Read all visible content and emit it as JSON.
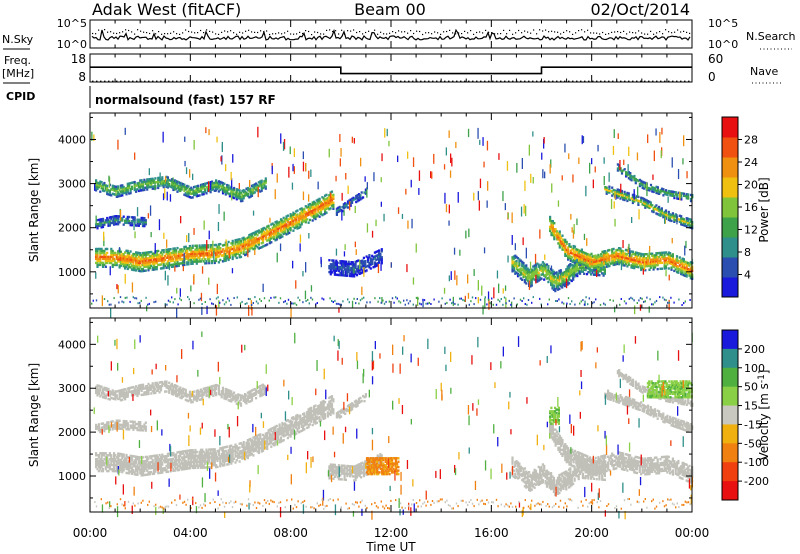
{
  "header": {
    "station": "Adak West (fitACF)",
    "beam": "Beam 00",
    "date": "02/Oct/2014"
  },
  "panels": {
    "noise": {
      "left_label": "N.Sky",
      "left_ticks": [
        "10^5",
        "10^0"
      ],
      "right_ticks": [
        "10^5",
        "10^0"
      ],
      "right_label": "N.Search"
    },
    "freq": {
      "left_label_1": "Freq.",
      "left_label_2": "[MHz]",
      "left_ticks": [
        "18",
        "8"
      ],
      "right_ticks": [
        "60",
        "0"
      ],
      "right_label": "Nave"
    },
    "cpid": {
      "label": "CPID",
      "text": "normalsound (fast) 157 RF"
    }
  },
  "chart_data": [
    {
      "type": "heatmap",
      "name": "power",
      "ylabel": "Slant Range [km]",
      "yticks": [
        1000,
        2000,
        3000,
        4000
      ],
      "ylim": [
        180,
        4600
      ],
      "xlim": [
        0,
        24
      ],
      "colorbar": {
        "label": "Power [dB]",
        "ticks": [
          4,
          8,
          12,
          16,
          20,
          24,
          28
        ],
        "range": [
          0,
          32
        ],
        "colors": [
          "#1a1adc",
          "#2a4fb0",
          "#2f8f8a",
          "#3ea24a",
          "#7fc43a",
          "#f0c010",
          "#f09010",
          "#f05010",
          "#e81010"
        ]
      },
      "echo_bands": [
        {
          "t0": 0.2,
          "t1": 9.7,
          "range_km": [
            [
              0.2,
              1350
            ],
            [
              1,
              1350
            ],
            [
              2,
              1250
            ],
            [
              3,
              1330
            ],
            [
              4,
              1420
            ],
            [
              5,
              1440
            ],
            [
              6,
              1580
            ],
            [
              7,
              1850
            ],
            [
              8,
              2150
            ],
            [
              9,
              2450
            ],
            [
              9.7,
              2680
            ]
          ],
          "thickness_km": 420,
          "power_db": 26
        },
        {
          "t0": 0.2,
          "t1": 7.0,
          "range_km": [
            [
              0.2,
              3000
            ],
            [
              1,
              2850
            ],
            [
              2,
              3000
            ],
            [
              3,
              3080
            ],
            [
              4,
              2830
            ],
            [
              5,
              3000
            ],
            [
              6,
              2750
            ],
            [
              7,
              3050
            ]
          ],
          "thickness_km": 250,
          "power_db": 16
        },
        {
          "t0": 0.2,
          "t1": 2.2,
          "range_km": [
            [
              0.2,
              2100
            ],
            [
              1,
              2200
            ],
            [
              2.2,
              2150
            ]
          ],
          "thickness_km": 180,
          "power_db": 10
        },
        {
          "t0": 9.8,
          "t1": 11.0,
          "range_km": [
            [
              9.8,
              2400
            ],
            [
              11,
              2850
            ]
          ],
          "thickness_km": 160,
          "power_db": 8
        },
        {
          "t0": 9.5,
          "t1": 11.6,
          "range_km": [
            [
              9.5,
              1150
            ],
            [
              10.5,
              1100
            ],
            [
              11.6,
              1400
            ]
          ],
          "thickness_km": 350,
          "power_db": 6
        },
        {
          "t0": 16.8,
          "t1": 20.5,
          "range_km": [
            [
              16.8,
              1250
            ],
            [
              17.5,
              900
            ],
            [
              18,
              1100
            ],
            [
              18.5,
              800
            ],
            [
              19,
              950
            ],
            [
              19.5,
              1200
            ],
            [
              20.5,
              1150
            ]
          ],
          "thickness_km": 420,
          "power_db": 18
        },
        {
          "t0": 18.3,
          "t1": 24.0,
          "range_km": [
            [
              18.3,
              2100
            ],
            [
              19,
              1500
            ],
            [
              20,
              1250
            ],
            [
              21,
              1400
            ],
            [
              22,
              1250
            ],
            [
              23,
              1300
            ],
            [
              24,
              1050
            ]
          ],
          "thickness_km": 380,
          "power_db": 26
        },
        {
          "t0": 20.5,
          "t1": 24.0,
          "range_km": [
            [
              20.5,
              2900
            ],
            [
              22,
              2600
            ],
            [
              23,
              2300
            ],
            [
              24,
              2100
            ]
          ],
          "thickness_km": 180,
          "power_db": 18
        },
        {
          "t0": 21.0,
          "t1": 24.0,
          "range_km": [
            [
              21,
              3400
            ],
            [
              22,
              3000
            ],
            [
              23,
              2800
            ],
            [
              24,
              2700
            ]
          ],
          "thickness_km": 150,
          "power_db": 14
        }
      ]
    },
    {
      "type": "heatmap",
      "name": "velocity",
      "ylabel": "Slant Range [km]",
      "yticks": [
        1000,
        2000,
        3000,
        4000
      ],
      "ylim": [
        180,
        4600
      ],
      "xlim": [
        0,
        24
      ],
      "xticks": [
        "00:00",
        "04:00",
        "08:00",
        "12:00",
        "16:00",
        "20:00",
        "00:00"
      ],
      "xlabel": "Time UT",
      "colorbar": {
        "label": "Velocity [m s^-1]",
        "ticks": [
          "200",
          "100",
          "50",
          "15",
          "-15",
          "-50",
          "-100",
          "-200"
        ],
        "colors": [
          "#1a1adc",
          "#2f8f8a",
          "#4fb040",
          "#8ad046",
          "#c8c8c0",
          "#f0b010",
          "#f08010",
          "#f04010",
          "#e81010"
        ]
      },
      "ground_scatter_color": "#c0c0b8",
      "ionospheric_patches": [
        {
          "t0": 11.0,
          "t1": 12.3,
          "range_km": 1250,
          "velocity": -60
        },
        {
          "t0": 18.3,
          "t1": 18.7,
          "range_km": 2400,
          "velocity": 40
        },
        {
          "t0": 22.2,
          "t1": 24.0,
          "range_km": 3000,
          "velocity": 40
        }
      ]
    },
    {
      "type": "line",
      "name": "frequency",
      "x": [
        0,
        10,
        10,
        18,
        18,
        24
      ],
      "y": [
        13.3,
        13.3,
        11.0,
        11.0,
        13.3,
        13.3
      ],
      "ylim": [
        8,
        18
      ],
      "nave_value": 2
    }
  ]
}
